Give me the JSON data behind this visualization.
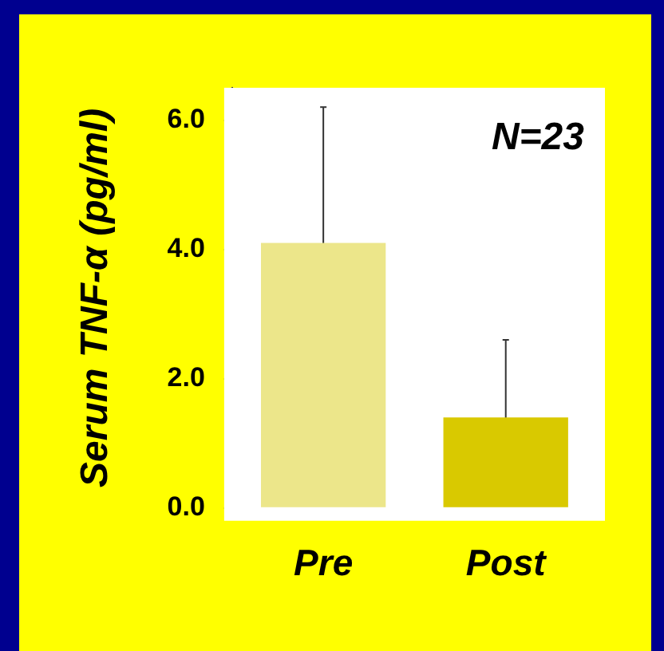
{
  "chart_data": {
    "type": "bar",
    "ylabel": "Serum TNF-α (pg/ml)",
    "categories": [
      "Pre",
      "Post"
    ],
    "values": [
      4.1,
      1.4
    ],
    "colors": [
      "#ece68a",
      "#d9c900"
    ],
    "errors": [
      2.1,
      1.2
    ],
    "ylim": [
      0,
      6.5
    ],
    "yticks": [
      {
        "value": 0,
        "label": "0.0"
      },
      {
        "value": 2,
        "label": "2.0"
      },
      {
        "value": 4,
        "label": "4.0"
      },
      {
        "value": 6,
        "label": "6.0"
      }
    ],
    "annotations": [
      {
        "text": "N=23"
      }
    ],
    "legend": false
  }
}
